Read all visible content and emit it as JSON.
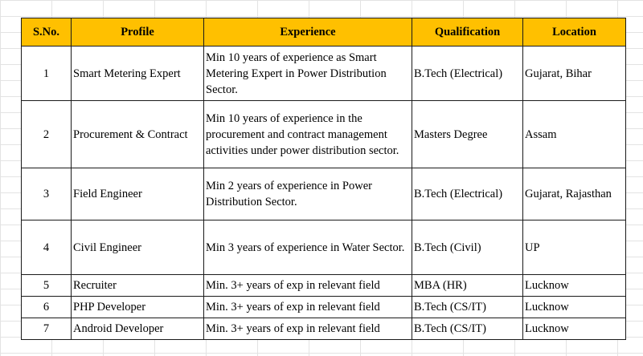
{
  "table": {
    "headers": [
      "S.No.",
      "Profile",
      "Experience",
      "Qualification",
      "Location"
    ],
    "rows": [
      {
        "sno": "1",
        "profile": "Smart Metering Expert",
        "experience": "Min 10 years of experience as Smart Metering Expert in Power Distribution Sector.",
        "qualification": "B.Tech (Electrical)",
        "location": "Gujarat, Bihar"
      },
      {
        "sno": "2",
        "profile": "Procurement & Contract",
        "experience": "Min 10 years of experience in the procurement and contract management activities under power distribution sector.",
        "qualification": "Masters Degree",
        "location": "Assam"
      },
      {
        "sno": "3",
        "profile": "Field Engineer",
        "experience": "Min 2 years of experience in Power Distribution Sector.",
        "qualification": "B.Tech (Electrical)",
        "location": "Gujarat, Rajasthan"
      },
      {
        "sno": "4",
        "profile": "Civil Engineer",
        "experience": "Min 3 years of experience in Water Sector.",
        "qualification": "B.Tech (Civil)",
        "location": "UP"
      },
      {
        "sno": "5",
        "profile": "Recruiter",
        "experience": "Min. 3+ years of exp in relevant field",
        "qualification": "MBA (HR)",
        "location": "Lucknow"
      },
      {
        "sno": "6",
        "profile": "PHP Developer",
        "experience": "Min. 3+ years of exp in relevant field",
        "qualification": "B.Tech (CS/IT)",
        "location": "Lucknow"
      },
      {
        "sno": "7",
        "profile": "Android Developer",
        "experience": "Min. 3+ years of exp in relevant field",
        "qualification": "B.Tech (CS/IT)",
        "location": "Lucknow"
      }
    ]
  },
  "colors": {
    "header_background": "#ffc000",
    "border": "#1a1a1a",
    "gridline": "#e3e3e3"
  }
}
